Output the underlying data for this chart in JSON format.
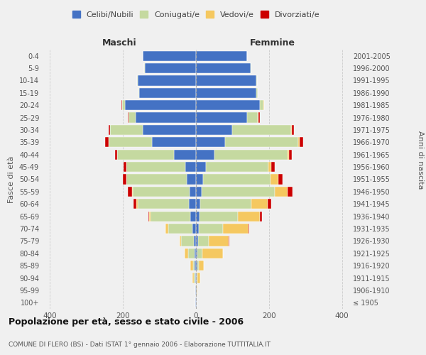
{
  "age_groups": [
    "100+",
    "95-99",
    "90-94",
    "85-89",
    "80-84",
    "75-79",
    "70-74",
    "65-69",
    "60-64",
    "55-59",
    "50-54",
    "45-49",
    "40-44",
    "35-39",
    "30-34",
    "25-29",
    "20-24",
    "15-19",
    "10-14",
    "5-9",
    "0-4"
  ],
  "birth_years": [
    "≤ 1905",
    "1906-1910",
    "1911-1915",
    "1916-1920",
    "1921-1925",
    "1926-1930",
    "1931-1935",
    "1936-1940",
    "1941-1945",
    "1946-1950",
    "1951-1955",
    "1956-1960",
    "1961-1965",
    "1966-1970",
    "1971-1975",
    "1976-1980",
    "1981-1985",
    "1986-1990",
    "1991-1995",
    "1996-2000",
    "2001-2005"
  ],
  "colors": {
    "celibi": "#4472c4",
    "coniugati": "#c5d9a0",
    "vedovi": "#f5c860",
    "divorziati": "#cc0000"
  },
  "maschi": {
    "celibi": [
      1,
      1,
      2,
      3,
      3,
      5,
      10,
      15,
      20,
      18,
      25,
      30,
      60,
      120,
      145,
      165,
      195,
      155,
      160,
      140,
      145
    ],
    "coniugati": [
      0,
      0,
      3,
      5,
      18,
      35,
      65,
      110,
      140,
      155,
      165,
      160,
      155,
      120,
      90,
      20,
      8,
      3,
      2,
      2,
      0
    ],
    "vedovi": [
      0,
      0,
      5,
      8,
      10,
      5,
      8,
      3,
      3,
      2,
      1,
      1,
      1,
      0,
      0,
      0,
      0,
      0,
      0,
      0,
      0
    ],
    "divorziati": [
      0,
      0,
      0,
      0,
      0,
      0,
      1,
      2,
      8,
      12,
      10,
      8,
      5,
      8,
      5,
      1,
      1,
      0,
      0,
      0,
      0
    ]
  },
  "femmine": {
    "celibi": [
      1,
      1,
      2,
      3,
      3,
      5,
      8,
      10,
      12,
      15,
      20,
      28,
      50,
      80,
      100,
      140,
      175,
      165,
      165,
      150,
      140
    ],
    "coniugati": [
      0,
      0,
      2,
      4,
      15,
      30,
      65,
      105,
      140,
      200,
      185,
      170,
      200,
      200,
      160,
      30,
      10,
      4,
      3,
      2,
      0
    ],
    "vedovi": [
      0,
      2,
      8,
      15,
      55,
      55,
      70,
      60,
      45,
      35,
      20,
      8,
      5,
      3,
      2,
      2,
      1,
      0,
      0,
      0,
      0
    ],
    "divorziati": [
      0,
      0,
      0,
      0,
      1,
      1,
      2,
      5,
      10,
      15,
      12,
      10,
      8,
      10,
      6,
      3,
      1,
      0,
      0,
      0,
      0
    ]
  },
  "xlim": 420,
  "title": "Popolazione per età, sesso e stato civile - 2006",
  "subtitle": "COMUNE DI FLERO (BS) - Dati ISTAT 1° gennaio 2006 - Elaborazione TUTTITALIA.IT",
  "ylabel_left": "Fasce di età",
  "ylabel_right": "Anni di nascita",
  "xlabel_maschi": "Maschi",
  "xlabel_femmine": "Femmine",
  "legend_labels": [
    "Celibi/Nubili",
    "Coniugati/e",
    "Vedovi/e",
    "Divorziati/e"
  ],
  "bg_color": "#f0f0f0",
  "plot_bg": "#f0f0f0"
}
